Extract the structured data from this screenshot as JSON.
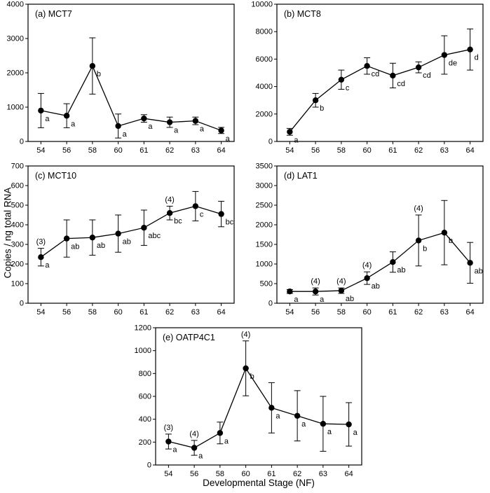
{
  "figure": {
    "ylabel": "Copies / ng total RNA",
    "xlabel": "Developmental Stage (NF)"
  },
  "chart_data": [
    {
      "panel": "a",
      "type": "line",
      "title": "(a) MCT7",
      "categories": [
        "54",
        "56",
        "58",
        "60",
        "61",
        "62",
        "63",
        "64"
      ],
      "values": [
        900,
        750,
        2200,
        450,
        670,
        560,
        600,
        320
      ],
      "errors": [
        500,
        350,
        820,
        350,
        110,
        150,
        110,
        90
      ],
      "point_labels": [
        "a",
        "a",
        "b",
        "a",
        "a",
        "a",
        "a",
        "a"
      ],
      "annotations": [],
      "ylim": [
        0,
        4000
      ],
      "ytick_step": 1000,
      "grid": false
    },
    {
      "panel": "b",
      "type": "line",
      "title": "(b) MCT8",
      "categories": [
        "54",
        "56",
        "58",
        "60",
        "61",
        "62",
        "63",
        "64"
      ],
      "values": [
        700,
        3000,
        4500,
        5500,
        4800,
        5400,
        6300,
        6700
      ],
      "errors": [
        250,
        500,
        700,
        600,
        900,
        400,
        1400,
        1500
      ],
      "point_labels": [
        "a",
        "b",
        "c",
        "cd",
        "cd",
        "cd",
        "de",
        "d"
      ],
      "annotations": [],
      "ylim": [
        0,
        10000
      ],
      "ytick_step": 2000,
      "grid": false
    },
    {
      "panel": "c",
      "type": "line",
      "title": "(c) MCT10",
      "categories": [
        "54",
        "56",
        "58",
        "60",
        "61",
        "62",
        "63",
        "64"
      ],
      "values": [
        235,
        330,
        335,
        355,
        385,
        460,
        495,
        455
      ],
      "errors": [
        45,
        95,
        90,
        95,
        90,
        35,
        75,
        65
      ],
      "point_labels": [
        "a",
        "ab",
        "ab",
        "ab",
        "abc",
        "bc",
        "c",
        "bc"
      ],
      "annotations": [
        {
          "index": 0,
          "text": "(3)"
        },
        {
          "index": 5,
          "text": "(4)"
        }
      ],
      "ylim": [
        0,
        700
      ],
      "ytick_step": 100,
      "grid": false
    },
    {
      "panel": "d",
      "type": "line",
      "title": "(d) LAT1",
      "categories": [
        "54",
        "56",
        "58",
        "60",
        "61",
        "62",
        "63",
        "64"
      ],
      "values": [
        300,
        300,
        320,
        640,
        1050,
        1600,
        1800,
        1030
      ],
      "errors": [
        50,
        90,
        70,
        160,
        260,
        650,
        820,
        520
      ],
      "point_labels": [
        "a",
        "a",
        "ab",
        "ab",
        "ab",
        "b",
        "b",
        "ab"
      ],
      "annotations": [
        {
          "index": 1,
          "text": "(4)"
        },
        {
          "index": 2,
          "text": "(4)"
        },
        {
          "index": 3,
          "text": "(4)"
        },
        {
          "index": 5,
          "text": "(4)"
        }
      ],
      "ylim": [
        0,
        3500
      ],
      "ytick_step": 500,
      "grid": false
    },
    {
      "panel": "e",
      "type": "line",
      "title": "(e) OATP4C1",
      "categories": [
        "54",
        "56",
        "58",
        "60",
        "61",
        "62",
        "63",
        "64"
      ],
      "values": [
        205,
        150,
        280,
        845,
        500,
        430,
        360,
        355
      ],
      "errors": [
        65,
        65,
        95,
        240,
        220,
        220,
        240,
        190
      ],
      "point_labels": [
        "a",
        "a",
        "a",
        "b",
        "a",
        "a",
        "a",
        "a"
      ],
      "annotations": [
        {
          "index": 0,
          "text": "(3)"
        },
        {
          "index": 1,
          "text": "(4)"
        },
        {
          "index": 3,
          "text": "(4)"
        }
      ],
      "ylim": [
        0,
        1200
      ],
      "ytick_step": 200,
      "grid": false
    }
  ],
  "style": {
    "line_color": "#000000",
    "marker_color": "#000000",
    "background": "#ffffff"
  }
}
